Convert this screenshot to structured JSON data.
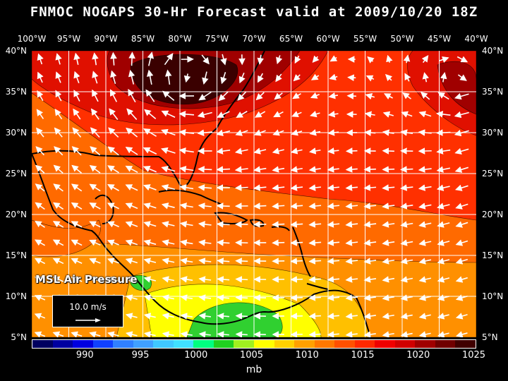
{
  "title": "FNMOC NOGAPS 30-Hr Forecast valid at 2009/10/20 18Z",
  "longitude_labels": [
    "100°W",
    "95°W",
    "90°W",
    "85°W",
    "80°W",
    "75°W",
    "70°W",
    "65°W",
    "60°W",
    "55°W",
    "50°W",
    "45°W",
    "40°W"
  ],
  "latitude_labels": [
    "40°N",
    "35°N",
    "30°N",
    "25°N",
    "20°N",
    "15°N",
    "10°N",
    "5°N"
  ],
  "field_label": "MSL Air Pressure",
  "wind_scale": {
    "label": "10.0 m/s",
    "arrow_color": "#ffffff"
  },
  "colorbar": {
    "tick_labels": [
      "990",
      "995",
      "1000",
      "1005",
      "1010",
      "1015",
      "1020",
      "1025"
    ],
    "units": "mb",
    "colors": [
      "#000060",
      "#0000a0",
      "#0000e0",
      "#1040ff",
      "#3080ff",
      "#40a0ff",
      "#40c8ff",
      "#40e0ff",
      "#00ff80",
      "#20d020",
      "#a0f020",
      "#ffff00",
      "#ffd000",
      "#ffa000",
      "#ff7800",
      "#ff5000",
      "#ff2800",
      "#f00000",
      "#d00000",
      "#a00000",
      "#700000",
      "#400000"
    ]
  },
  "map_colors": {
    "high_dark": "#3a0000",
    "high_mid": "#a00000",
    "high_red": "#e01000",
    "mid_red": "#ff3000",
    "orange": "#ff6a00",
    "light_orange": "#ff9000",
    "yellow_orange": "#ffc000",
    "yellow": "#ffff00",
    "green": "#30d030",
    "grid": "#ffffff",
    "coast": "#000000"
  }
}
